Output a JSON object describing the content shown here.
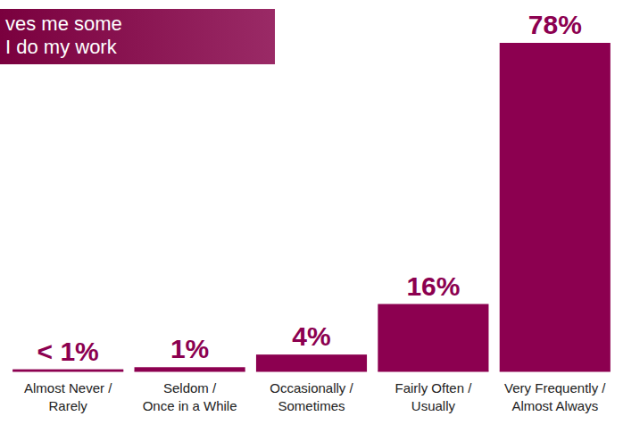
{
  "chart_data": {
    "type": "bar",
    "title": "ves me some\nI do my work",
    "categories": [
      "Almost Never / Rarely",
      "Seldom / Once in a While",
      "Occasionally / Sometimes",
      "Fairly Often / Usually",
      "Very Frequently / Almost Always"
    ],
    "values": [
      0.5,
      1,
      4,
      16,
      78
    ],
    "value_labels": [
      "< 1%",
      "1%",
      "4%",
      "16%",
      "78%"
    ],
    "color": "#8c0050",
    "ylim": [
      0,
      78
    ],
    "data_labels": true,
    "tick_labels": "x"
  }
}
